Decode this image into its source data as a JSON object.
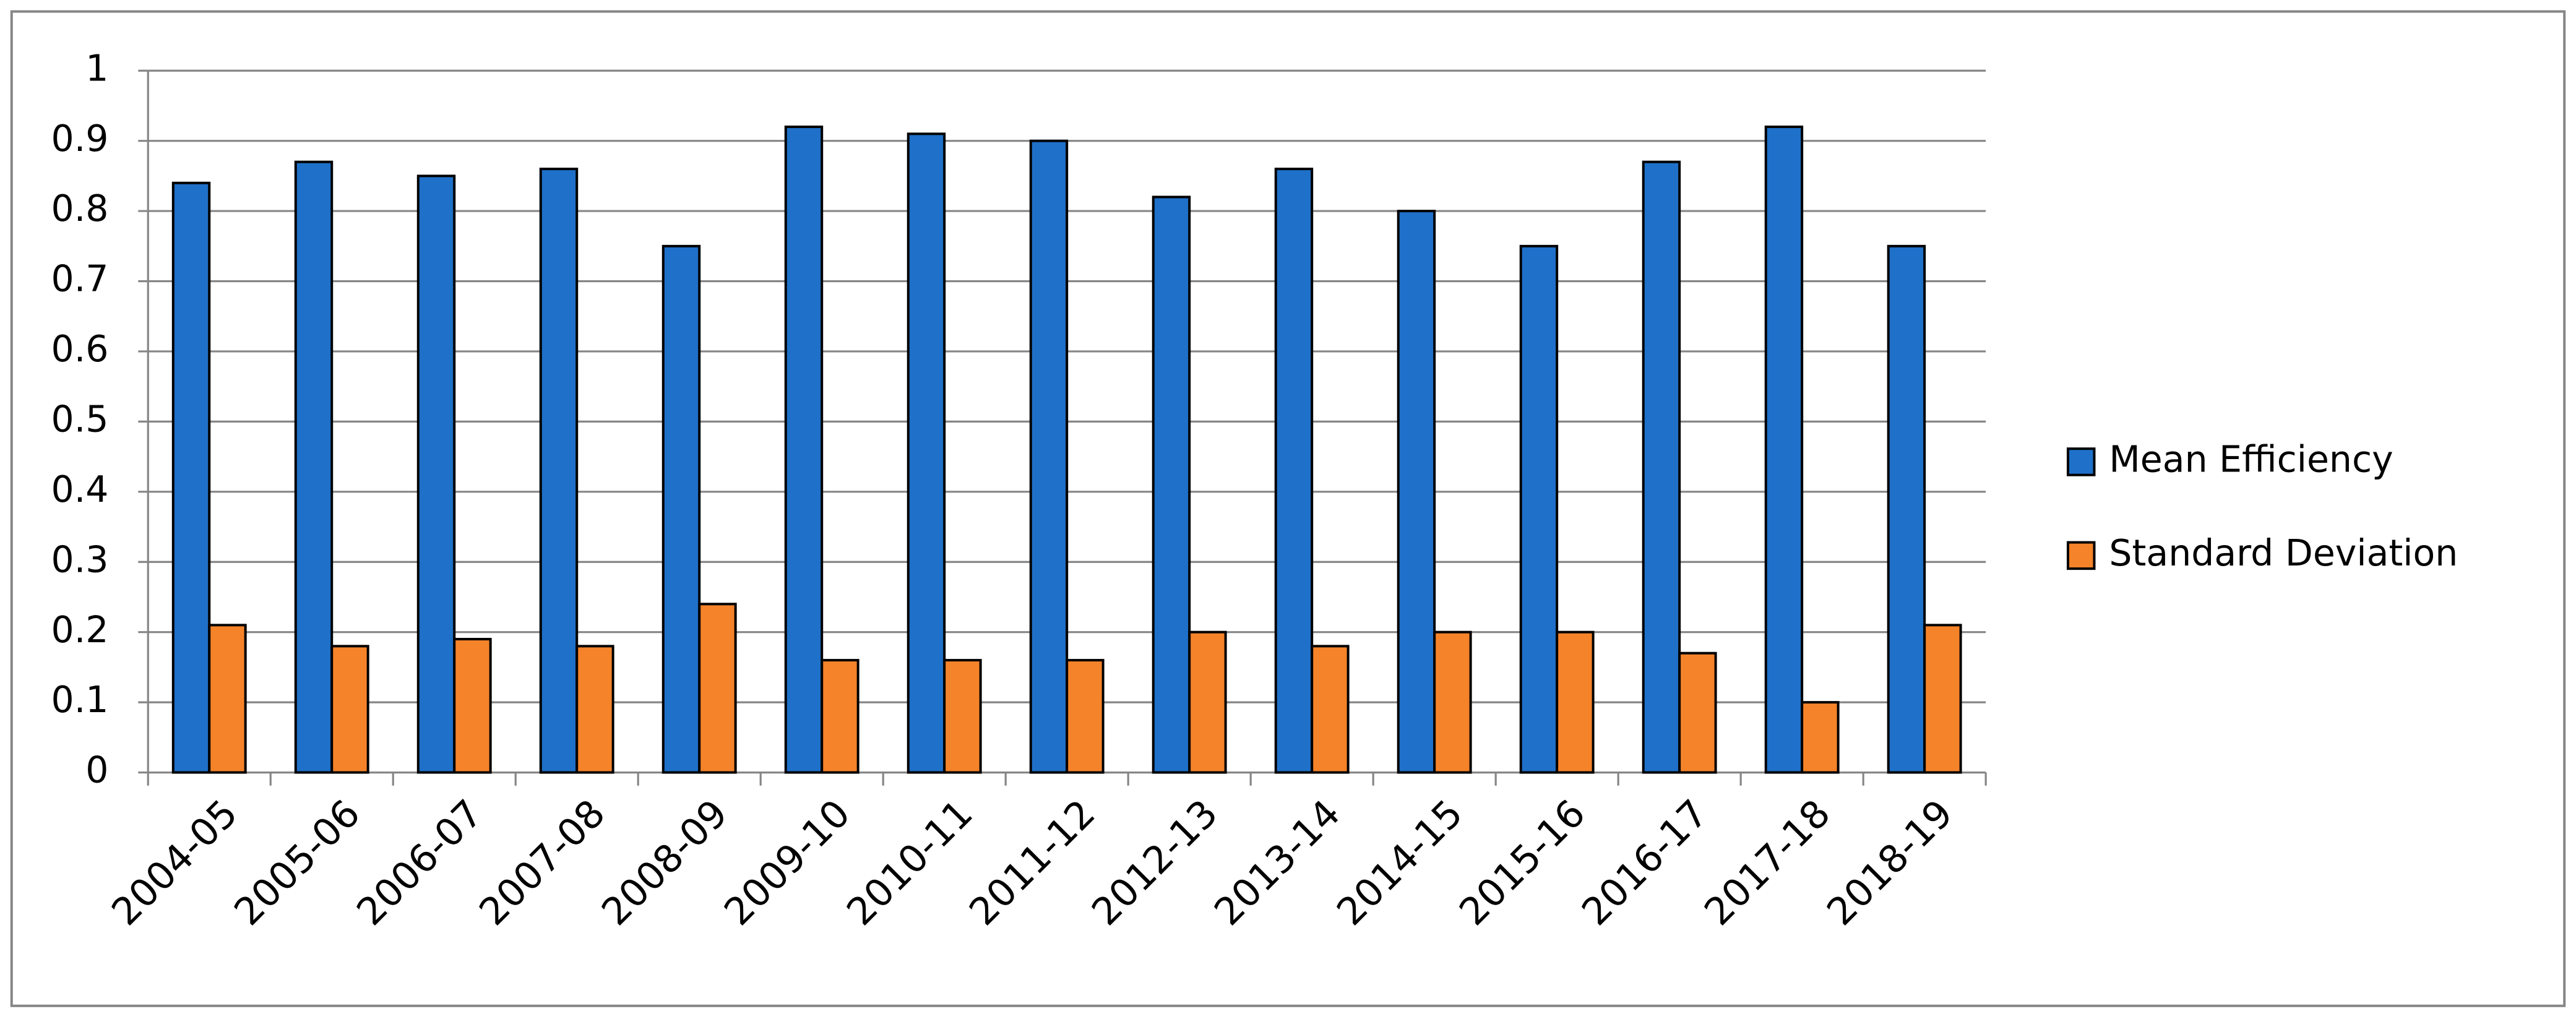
{
  "chart_data": {
    "type": "bar",
    "categories": [
      "2004-05",
      "2005-06",
      "2006-07",
      "2007-08",
      "2008-09",
      "2009-10",
      "2010-11",
      "2011-12",
      "2012-13",
      "2013-14",
      "2014-15",
      "2015-16",
      "2016-17",
      "2017-18",
      "2018-19"
    ],
    "series": [
      {
        "name": "Mean Efficiency",
        "color": "#1f70c8",
        "values": [
          0.84,
          0.87,
          0.85,
          0.86,
          0.75,
          0.92,
          0.91,
          0.9,
          0.82,
          0.86,
          0.8,
          0.75,
          0.87,
          0.92,
          0.75
        ]
      },
      {
        "name": "Standard Deviation",
        "color": "#f5832a",
        "values": [
          0.21,
          0.18,
          0.19,
          0.18,
          0.24,
          0.16,
          0.16,
          0.16,
          0.2,
          0.18,
          0.2,
          0.2,
          0.17,
          0.1,
          0.21
        ]
      }
    ],
    "ylim": [
      0,
      1
    ],
    "yticks": [
      0,
      0.1,
      0.2,
      0.3,
      0.4,
      0.5,
      0.6,
      0.7,
      0.8,
      0.9,
      1
    ],
    "grid": true,
    "legend": "right"
  }
}
